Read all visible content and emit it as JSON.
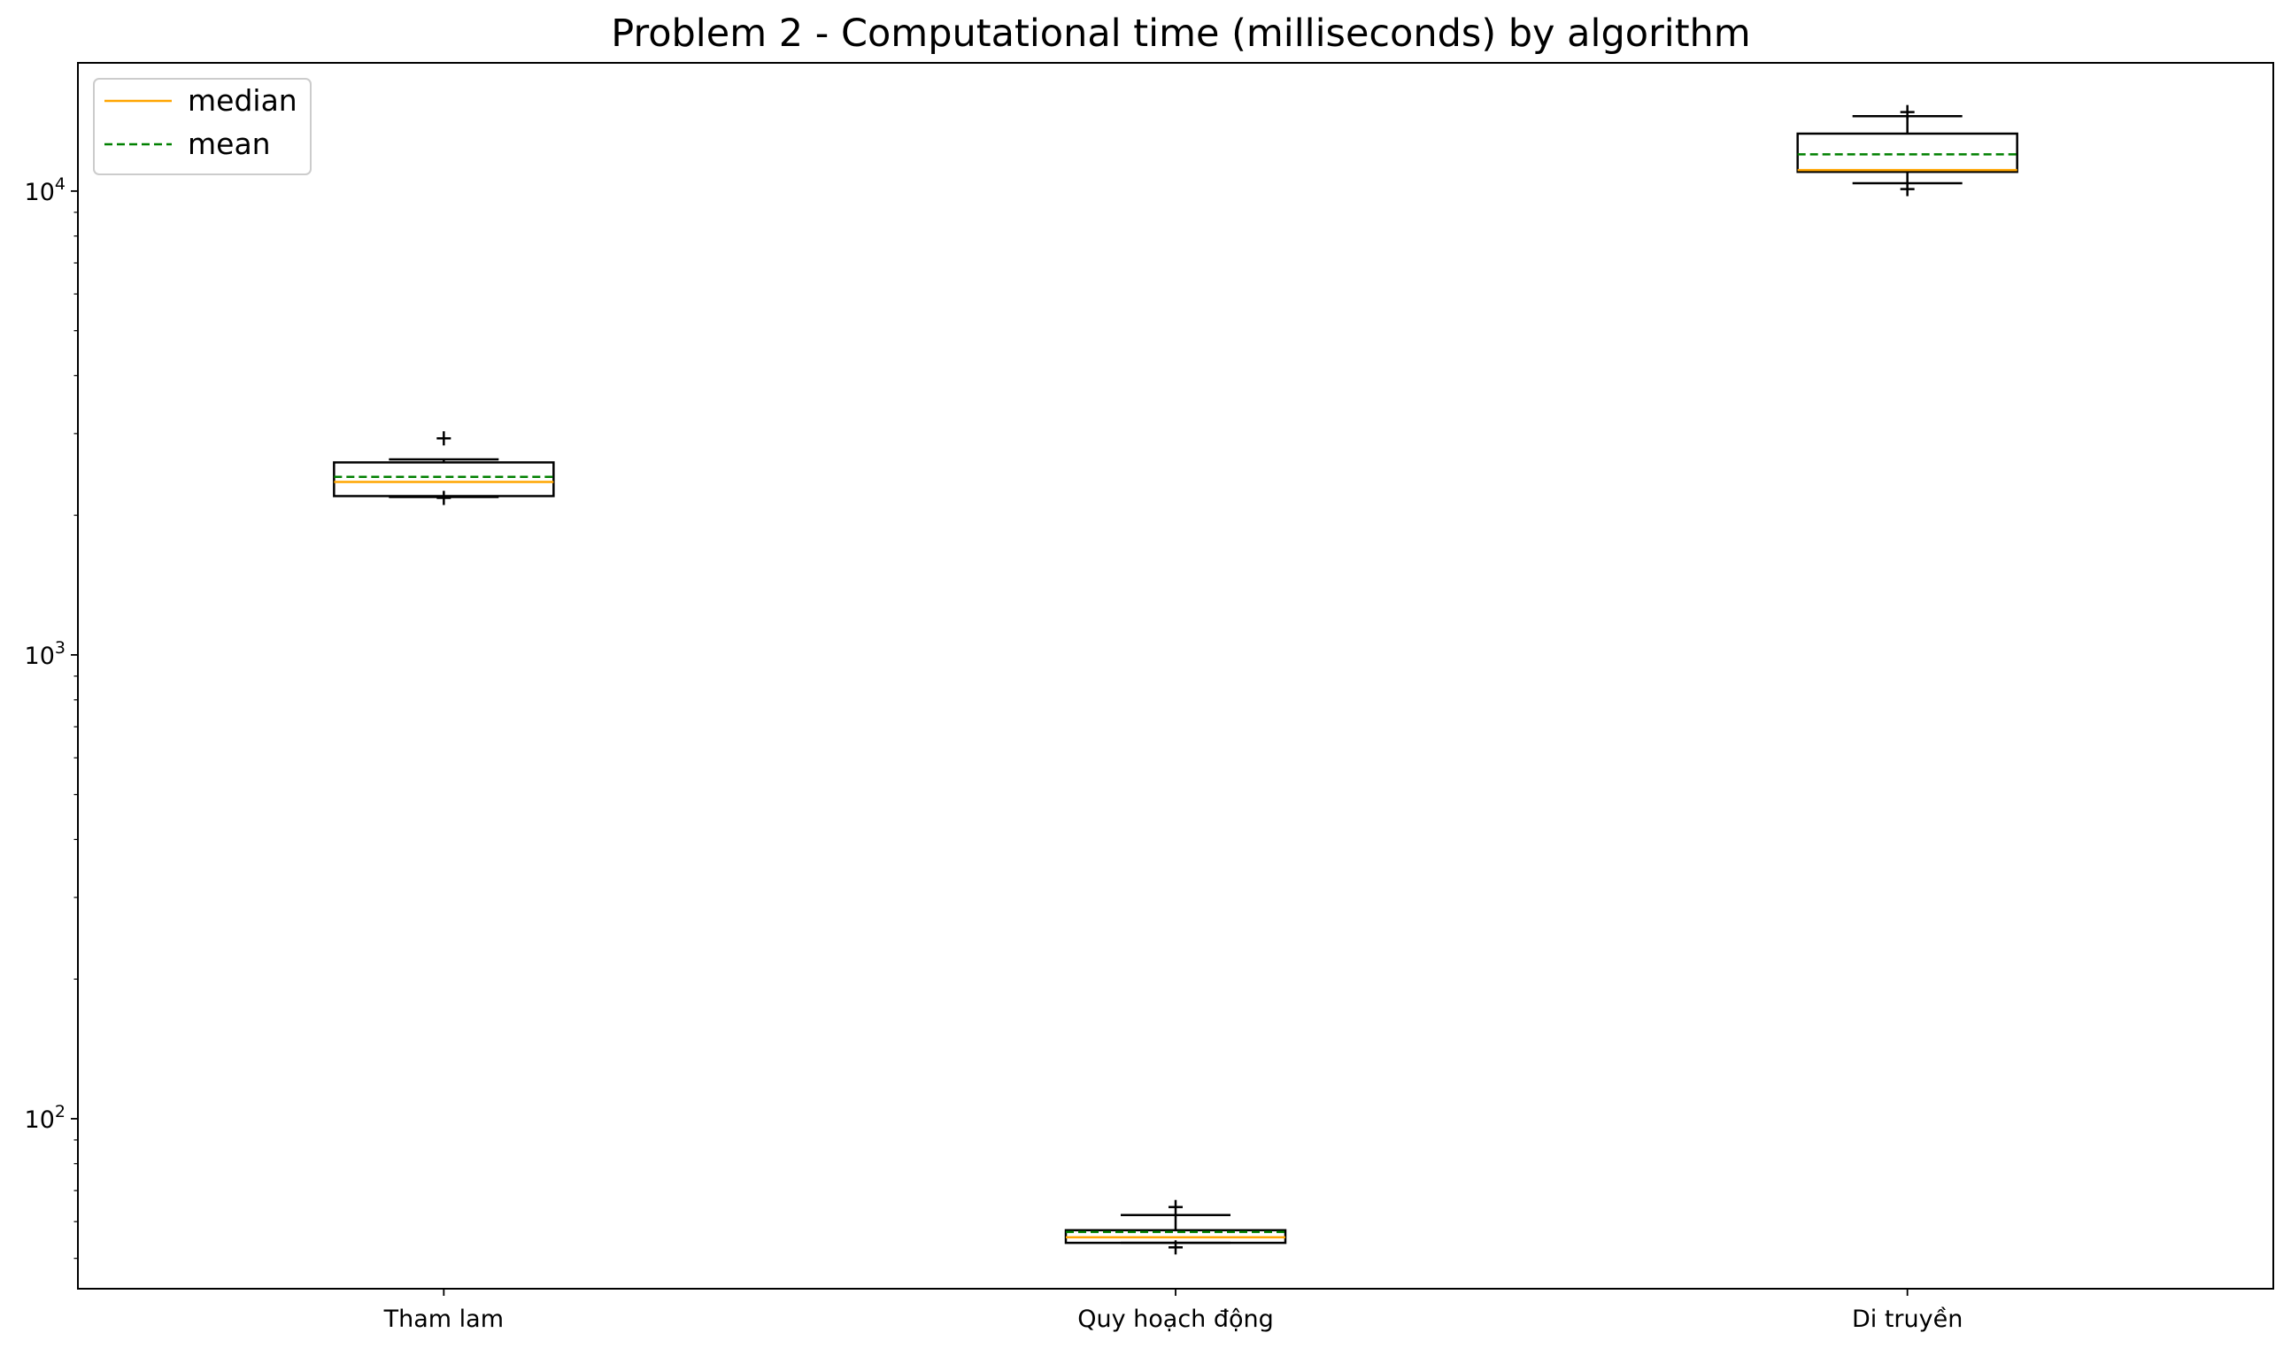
{
  "chart_data": {
    "type": "box",
    "title": "Problem 2 - Computational time (milliseconds) by algorithm",
    "xlabel": "",
    "ylabel": "",
    "y_scale": "log",
    "ylim": [
      43,
      18900
    ],
    "y_ticks": [
      {
        "value": 100,
        "base": "10",
        "exp": "2"
      },
      {
        "value": 1000,
        "base": "10",
        "exp": "3"
      },
      {
        "value": 10000,
        "base": "10",
        "exp": "4"
      }
    ],
    "grid": false,
    "legend": {
      "placement": "top-left",
      "entries": [
        {
          "label": "median",
          "color": "#ffa500",
          "style": "solid"
        },
        {
          "label": "mean",
          "color": "#008000",
          "style": "dashed"
        }
      ]
    },
    "categories": [
      "Tham lam",
      "Quy hoạch động",
      "Di truyền"
    ],
    "boxes": [
      {
        "category": "Tham lam",
        "whisker_low": 2190,
        "q1": 2200,
        "median": 2360,
        "mean": 2420,
        "q3": 2600,
        "whisker_high": 2640,
        "outliers": [
          2930,
          2180
        ]
      },
      {
        "category": "Quy hoạch động",
        "whisker_low": 54,
        "q1": 54,
        "median": 55.5,
        "mean": 57,
        "q3": 57.5,
        "whisker_high": 62,
        "outliers": [
          64.5,
          52.8
        ]
      },
      {
        "category": "Di truyền",
        "whisker_low": 10400,
        "q1": 11000,
        "median": 11100,
        "mean": 12000,
        "q3": 13300,
        "whisker_high": 14500,
        "outliers": [
          14800,
          10100
        ]
      }
    ],
    "colors": {
      "box_edge": "#000000",
      "median": "#ffa500",
      "mean": "#008000",
      "background": "#ffffff"
    }
  }
}
